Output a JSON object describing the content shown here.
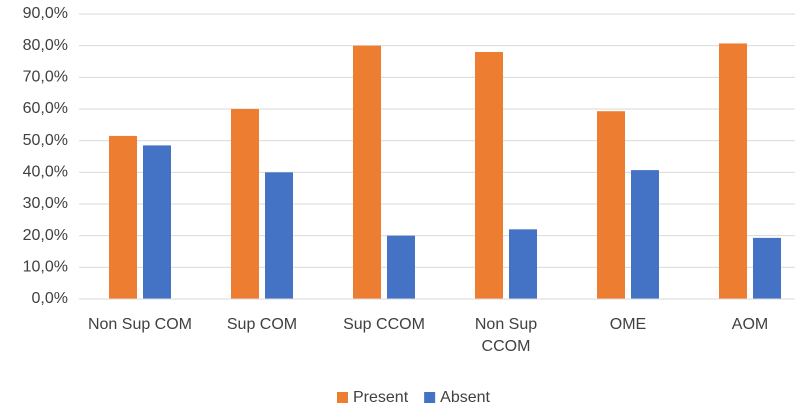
{
  "chart_data": {
    "type": "bar",
    "categories": [
      "Non Sup COM",
      "Sup COM",
      "Sup CCOM",
      "Non Sup CCOM",
      "OME",
      "AOM"
    ],
    "series": [
      {
        "name": "Present",
        "color": "#ed7d31",
        "values": [
          51.5,
          60,
          80,
          78,
          59.3,
          80.7
        ]
      },
      {
        "name": "Absent",
        "color": "#4472c4",
        "values": [
          48.5,
          40,
          20,
          22,
          40.7,
          19.3
        ]
      }
    ],
    "ylim": [
      0,
      90
    ],
    "yticks": [
      {
        "value": 0,
        "label": "0,0%"
      },
      {
        "value": 10,
        "label": "10,0%"
      },
      {
        "value": 20,
        "label": "20,0%"
      },
      {
        "value": 30,
        "label": "30,0%"
      },
      {
        "value": 40,
        "label": "40,0%"
      },
      {
        "value": 50,
        "label": "50,0%"
      },
      {
        "value": 60,
        "label": "60,0%"
      },
      {
        "value": 70,
        "label": "70,0%"
      },
      {
        "value": 80,
        "label": "80,0%"
      },
      {
        "value": 90,
        "label": "90,0%"
      }
    ],
    "grid": true,
    "legend": "bottom"
  }
}
